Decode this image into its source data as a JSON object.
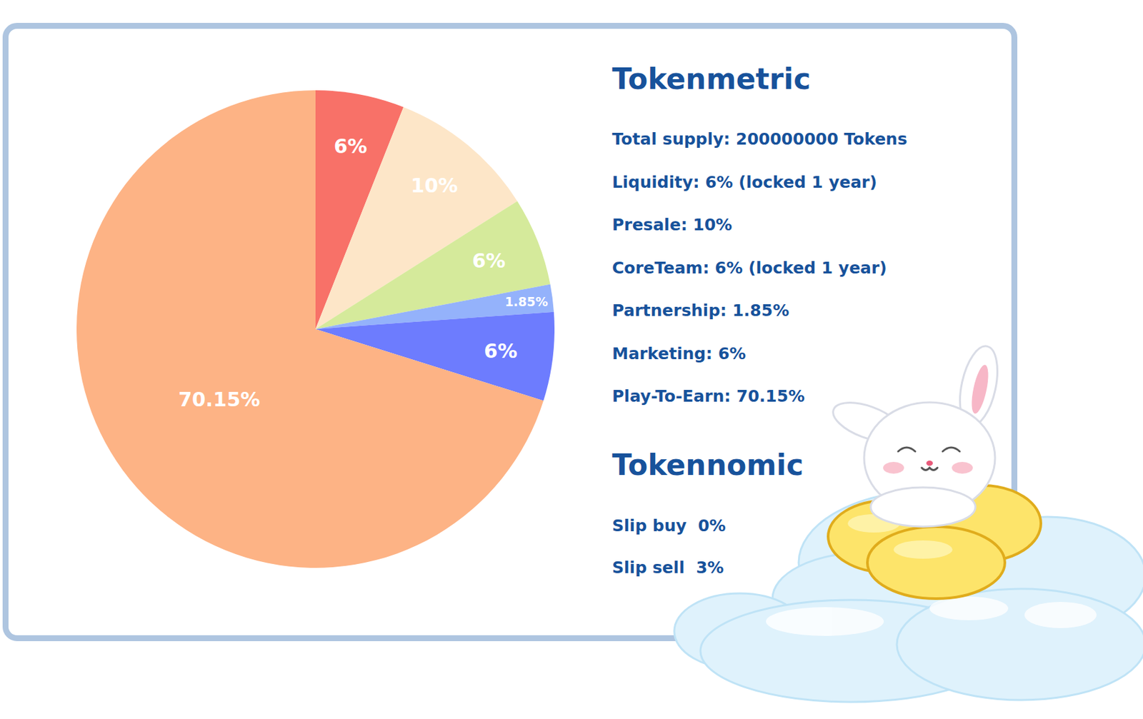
{
  "chart_data": {
    "type": "pie",
    "categories": [
      "Liquidity",
      "Presale",
      "CoreTeam",
      "Partnership",
      "Marketing",
      "Play-To-Earn"
    ],
    "values": [
      6,
      10,
      6,
      1.85,
      6,
      70.15
    ],
    "value_labels": [
      "6%",
      "10%",
      "6%",
      "1.85%",
      "6%",
      "70.15%"
    ],
    "colors": [
      "#f87168",
      "#fde6c8",
      "#d5ea9b",
      "#94b2fb",
      "#6d7cfe",
      "#fdb385"
    ],
    "data_labels": true
  },
  "panel": {
    "sections": [
      {
        "title": "Tokenmetric",
        "lines": [
          "Total supply: 200000000 Tokens",
          "Liquidity: 6% (locked 1 year)",
          "Presale: 10%",
          "CoreTeam: 6% (locked 1 year)",
          "Partnership: 1.85%",
          "Marketing: 6%",
          "Play-To-Earn: 70.15%"
        ]
      },
      {
        "title": "Tokennomic",
        "lines": [
          "Slip buy  0%",
          "Slip sell  3%"
        ]
      }
    ]
  }
}
